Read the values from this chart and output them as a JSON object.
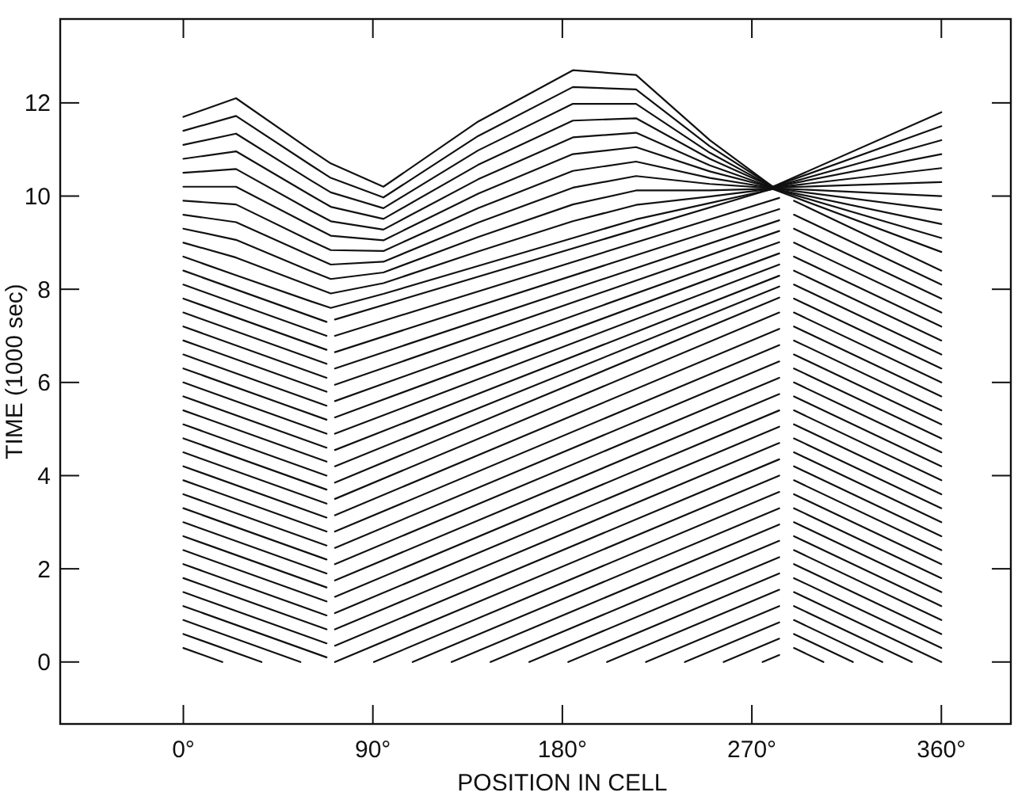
{
  "chart_data": {
    "type": "line",
    "xlabel": "POSITION IN CELL",
    "ylabel": "TIME (1000 sec)",
    "color": "#111111",
    "line_style": "solid",
    "marker": "none",
    "grid": false,
    "xlim": [
      -58.5,
      393
    ],
    "ylim": [
      -1.33,
      13.8
    ],
    "xticks": [
      {
        "value": 0,
        "label": "0°"
      },
      {
        "value": 90,
        "label": "90°"
      },
      {
        "value": 180,
        "label": "180°"
      },
      {
        "value": 270,
        "label": "270°"
      },
      {
        "value": 360,
        "label": "360°"
      }
    ],
    "yticks": [
      0,
      2,
      4,
      6,
      8,
      10,
      12
    ],
    "x": [
      0,
      25,
      60,
      70,
      95,
      140,
      185,
      215,
      250,
      280,
      360
    ],
    "series": [
      {
        "x": [
          0,
          18.5
        ],
        "values": [
          0.3,
          0
        ]
      },
      {
        "x": [
          0,
          37.1
        ],
        "values": [
          0.6,
          0
        ]
      },
      {
        "x": [
          0,
          55.6
        ],
        "values": [
          0.9,
          0
        ]
      },
      {
        "x": [
          0,
          68
        ],
        "values": [
          1.2,
          0.1
        ]
      },
      {
        "x": [
          0,
          68
        ],
        "values": [
          1.5,
          0.4
        ]
      },
      {
        "x": [
          0,
          68
        ],
        "values": [
          1.8,
          0.7
        ]
      },
      {
        "x": [
          0,
          68
        ],
        "values": [
          2.1,
          1.0
        ]
      },
      {
        "x": [
          0,
          68
        ],
        "values": [
          2.4,
          1.3
        ]
      },
      {
        "x": [
          0,
          68
        ],
        "values": [
          2.7,
          1.6
        ]
      },
      {
        "x": [
          0,
          68
        ],
        "values": [
          3.0,
          1.9
        ]
      },
      {
        "x": [
          0,
          68
        ],
        "values": [
          3.3,
          2.2
        ]
      },
      {
        "x": [
          0,
          68
        ],
        "values": [
          3.6,
          2.5
        ]
      },
      {
        "x": [
          0,
          68
        ],
        "values": [
          3.9,
          2.8
        ]
      },
      {
        "x": [
          0,
          68
        ],
        "values": [
          4.2,
          3.1
        ]
      },
      {
        "x": [
          0,
          68
        ],
        "values": [
          4.5,
          3.4
        ]
      },
      {
        "x": [
          0,
          68
        ],
        "values": [
          4.8,
          3.7
        ]
      },
      {
        "x": [
          0,
          68
        ],
        "values": [
          5.1,
          4.0
        ]
      },
      {
        "x": [
          0,
          68
        ],
        "values": [
          5.4,
          4.3
        ]
      },
      {
        "x": [
          0,
          68
        ],
        "values": [
          5.7,
          4.6
        ]
      },
      {
        "x": [
          0,
          68
        ],
        "values": [
          6.0,
          4.9
        ]
      },
      {
        "x": [
          0,
          68
        ],
        "values": [
          6.3,
          5.2
        ]
      },
      {
        "x": [
          0,
          68
        ],
        "values": [
          6.6,
          5.5
        ]
      },
      {
        "x": [
          0,
          68
        ],
        "values": [
          6.9,
          5.8
        ]
      },
      {
        "x": [
          0,
          68
        ],
        "values": [
          7.2,
          6.1
        ]
      },
      {
        "x": [
          0,
          68
        ],
        "values": [
          7.5,
          6.4
        ]
      },
      {
        "x": [
          0,
          68
        ],
        "values": [
          7.8,
          6.7
        ]
      },
      {
        "x": [
          0,
          68
        ],
        "values": [
          8.1,
          7.0
        ]
      },
      {
        "x": [
          0,
          68
        ],
        "values": [
          8.4,
          7.3
        ]
      },
      {
        "x": [
          275.1,
          283
        ],
        "values": [
          0,
          0.15
        ]
      },
      {
        "x": [
          256.6,
          283
        ],
        "values": [
          0,
          0.5
        ]
      },
      {
        "x": [
          238.2,
          283
        ],
        "values": [
          0,
          0.85
        ]
      },
      {
        "x": [
          219.7,
          283
        ],
        "values": [
          0,
          1.2
        ]
      },
      {
        "x": [
          201.2,
          283
        ],
        "values": [
          0,
          1.55
        ]
      },
      {
        "x": [
          182.8,
          283
        ],
        "values": [
          0,
          1.9
        ]
      },
      {
        "x": [
          164.3,
          283
        ],
        "values": [
          0,
          2.25
        ]
      },
      {
        "x": [
          145.9,
          283
        ],
        "values": [
          0,
          2.6
        ]
      },
      {
        "x": [
          127.4,
          283
        ],
        "values": [
          0,
          2.95
        ]
      },
      {
        "x": [
          108.9,
          283
        ],
        "values": [
          0,
          3.3
        ]
      },
      {
        "x": [
          90.5,
          283
        ],
        "values": [
          0,
          3.65
        ]
      },
      {
        "x": [
          72,
          283
        ],
        "values": [
          0,
          4.0
        ]
      },
      {
        "x": [
          72,
          283
        ],
        "values": [
          0.35,
          4.35
        ]
      },
      {
        "x": [
          72,
          283
        ],
        "values": [
          0.7,
          4.7
        ]
      },
      {
        "x": [
          72,
          283
        ],
        "values": [
          1.05,
          5.05
        ]
      },
      {
        "x": [
          72,
          283
        ],
        "values": [
          1.4,
          5.4
        ]
      },
      {
        "x": [
          72,
          283
        ],
        "values": [
          1.75,
          5.75
        ]
      },
      {
        "x": [
          72,
          283
        ],
        "values": [
          2.1,
          6.1
        ]
      },
      {
        "x": [
          72,
          283
        ],
        "values": [
          2.45,
          6.45
        ]
      },
      {
        "x": [
          72,
          283
        ],
        "values": [
          2.8,
          6.8
        ]
      },
      {
        "x": [
          72,
          283
        ],
        "values": [
          3.15,
          7.15
        ]
      },
      {
        "x": [
          72,
          283
        ],
        "values": [
          3.5,
          7.5
        ]
      },
      {
        "x": [
          72,
          283
        ],
        "values": [
          3.85,
          7.82
        ]
      },
      {
        "x": [
          72,
          283
        ],
        "values": [
          4.2,
          8.06
        ]
      },
      {
        "x": [
          72,
          283
        ],
        "values": [
          4.55,
          8.29
        ]
      },
      {
        "x": [
          72,
          283
        ],
        "values": [
          4.9,
          8.53
        ]
      },
      {
        "x": [
          72,
          283
        ],
        "values": [
          5.25,
          8.77
        ]
      },
      {
        "x": [
          72,
          283
        ],
        "values": [
          5.6,
          9.01
        ]
      },
      {
        "x": [
          72,
          283
        ],
        "values": [
          5.95,
          9.25
        ]
      },
      {
        "x": [
          72,
          283
        ],
        "values": [
          6.3,
          9.48
        ]
      },
      {
        "x": [
          72,
          283
        ],
        "values": [
          6.65,
          9.72
        ]
      },
      {
        "x": [
          72,
          283
        ],
        "values": [
          7.0,
          9.96
        ]
      },
      {
        "x": [
          72,
          283
        ],
        "values": [
          7.35,
          10.2
        ]
      },
      {
        "x": [
          290,
          304
        ],
        "values": [
          0.3,
          0
        ]
      },
      {
        "x": [
          290,
          318
        ],
        "values": [
          0.6,
          0
        ]
      },
      {
        "x": [
          290,
          332
        ],
        "values": [
          0.9,
          0
        ]
      },
      {
        "x": [
          290,
          346
        ],
        "values": [
          1.2,
          0
        ]
      },
      {
        "x": [
          290,
          360
        ],
        "values": [
          1.5,
          0
        ]
      },
      {
        "x": [
          290,
          360
        ],
        "values": [
          1.8,
          0.3
        ]
      },
      {
        "x": [
          290,
          360
        ],
        "values": [
          2.1,
          0.6
        ]
      },
      {
        "x": [
          290,
          360
        ],
        "values": [
          2.4,
          0.9
        ]
      },
      {
        "x": [
          290,
          360
        ],
        "values": [
          2.7,
          1.2
        ]
      },
      {
        "x": [
          290,
          360
        ],
        "values": [
          3.0,
          1.5
        ]
      },
      {
        "x": [
          290,
          360
        ],
        "values": [
          3.3,
          1.8
        ]
      },
      {
        "x": [
          290,
          360
        ],
        "values": [
          3.6,
          2.1
        ]
      },
      {
        "x": [
          290,
          360
        ],
        "values": [
          3.9,
          2.4
        ]
      },
      {
        "x": [
          290,
          360
        ],
        "values": [
          4.2,
          2.7
        ]
      },
      {
        "x": [
          290,
          360
        ],
        "values": [
          4.5,
          3.0
        ]
      },
      {
        "x": [
          290,
          360
        ],
        "values": [
          4.8,
          3.3
        ]
      },
      {
        "x": [
          290,
          360
        ],
        "values": [
          5.1,
          3.6
        ]
      },
      {
        "x": [
          290,
          360
        ],
        "values": [
          5.4,
          3.9
        ]
      },
      {
        "x": [
          290,
          360
        ],
        "values": [
          5.7,
          4.2
        ]
      },
      {
        "x": [
          290,
          360
        ],
        "values": [
          6.0,
          4.5
        ]
      },
      {
        "x": [
          290,
          360
        ],
        "values": [
          6.3,
          4.8
        ]
      },
      {
        "x": [
          290,
          360
        ],
        "values": [
          6.6,
          5.1
        ]
      },
      {
        "x": [
          290,
          360
        ],
        "values": [
          6.9,
          5.4
        ]
      },
      {
        "x": [
          290,
          360
        ],
        "values": [
          7.2,
          5.7
        ]
      },
      {
        "x": [
          290,
          360
        ],
        "values": [
          7.5,
          6.0
        ]
      },
      {
        "x": [
          290,
          360
        ],
        "values": [
          7.8,
          6.3
        ]
      },
      {
        "x": [
          290,
          360
        ],
        "values": [
          8.1,
          6.6
        ]
      },
      {
        "x": [
          290,
          360
        ],
        "values": [
          8.4,
          6.9
        ]
      },
      {
        "x": [
          290,
          360
        ],
        "values": [
          8.7,
          7.2
        ]
      },
      {
        "x": [
          290,
          360
        ],
        "values": [
          9.0,
          7.5
        ]
      },
      {
        "x": [
          290,
          360
        ],
        "values": [
          9.3,
          7.8
        ]
      },
      {
        "x": [
          290,
          360
        ],
        "values": [
          9.6,
          8.1
        ]
      },
      {
        "x": [
          290,
          360
        ],
        "values": [
          9.9,
          8.4
        ]
      },
      {
        "values": [
          8.7,
          8.3,
          7.75,
          7.6,
          7.9,
          8.5,
          9.1,
          9.5,
          9.85,
          10.15,
          8.8
        ]
      },
      {
        "values": [
          9.0,
          8.68,
          8.08,
          7.91,
          8.13,
          8.81,
          9.46,
          9.81,
          9.99,
          10.16,
          9.1
        ]
      },
      {
        "values": [
          9.3,
          9.06,
          8.4,
          8.22,
          8.36,
          9.12,
          9.82,
          10.12,
          10.12,
          10.16,
          9.4
        ]
      },
      {
        "values": [
          9.6,
          9.44,
          8.73,
          8.53,
          8.59,
          9.43,
          10.18,
          10.43,
          10.26,
          10.17,
          9.7
        ]
      },
      {
        "values": [
          9.9,
          9.82,
          9.05,
          8.84,
          8.82,
          9.74,
          10.54,
          10.74,
          10.39,
          10.17,
          10.0
        ]
      },
      {
        "values": [
          10.2,
          10.2,
          9.38,
          9.15,
          9.05,
          10.05,
          10.9,
          11.05,
          10.53,
          10.18,
          10.3
        ]
      },
      {
        "values": [
          10.5,
          10.58,
          9.7,
          9.46,
          9.28,
          10.36,
          11.26,
          11.36,
          10.66,
          10.18,
          10.6
        ]
      },
      {
        "values": [
          10.8,
          10.96,
          10.03,
          9.77,
          9.51,
          10.67,
          11.62,
          11.67,
          10.8,
          10.19,
          10.9
        ]
      },
      {
        "values": [
          11.1,
          11.34,
          10.35,
          10.08,
          9.74,
          10.98,
          11.98,
          11.98,
          10.93,
          10.19,
          11.2
        ]
      },
      {
        "values": [
          11.4,
          11.72,
          10.68,
          10.39,
          9.97,
          11.29,
          12.34,
          12.29,
          11.07,
          10.2,
          11.5
        ]
      },
      {
        "values": [
          11.7,
          12.1,
          11.0,
          10.7,
          10.2,
          11.6,
          12.7,
          12.6,
          11.2,
          10.2,
          11.8
        ]
      }
    ]
  }
}
